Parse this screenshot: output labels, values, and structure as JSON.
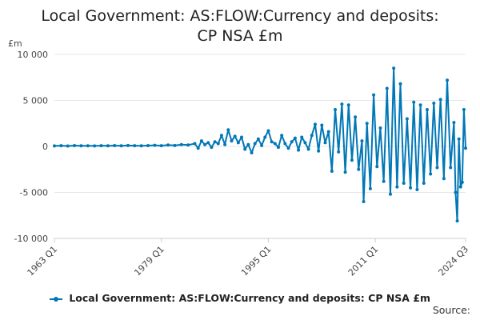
{
  "chart_data": {
    "type": "line",
    "title": "Local Government: AS:FLOW:Currency and deposits: CP NSA £m",
    "ylabel": "£m",
    "xlabel": "",
    "ylim": [
      -10000,
      10000
    ],
    "yticks": [
      10000,
      5000,
      0,
      -5000,
      -10000
    ],
    "ytick_labels": [
      "10 000",
      "5 000",
      "0",
      "-5 000",
      "-10 000"
    ],
    "xlim": [
      "1963 Q1",
      "2024 Q3"
    ],
    "xtick_labels": [
      "1963 Q1",
      "1979 Q1",
      "1995 Q1",
      "2011 Q1",
      "2024 Q3"
    ],
    "grid": "horizontal",
    "legend_position": "bottom",
    "color": "#0077b6",
    "series": [
      {
        "name": "Local Government: AS:FLOW:Currency and deposits: CP NSA £m",
        "points": [
          [
            "1963 Q1",
            50
          ],
          [
            "1964 Q1",
            80
          ],
          [
            "1965 Q1",
            40
          ],
          [
            "1966 Q1",
            90
          ],
          [
            "1967 Q1",
            60
          ],
          [
            "1968 Q1",
            70
          ],
          [
            "1969 Q1",
            50
          ],
          [
            "1970 Q1",
            80
          ],
          [
            "1971 Q1",
            60
          ],
          [
            "1972 Q1",
            90
          ],
          [
            "1973 Q1",
            70
          ],
          [
            "1974 Q1",
            100
          ],
          [
            "1975 Q1",
            80
          ],
          [
            "1976 Q1",
            60
          ],
          [
            "1977 Q1",
            90
          ],
          [
            "1978 Q1",
            120
          ],
          [
            "1979 Q1",
            80
          ],
          [
            "1980 Q1",
            150
          ],
          [
            "1981 Q1",
            100
          ],
          [
            "1982 Q1",
            200
          ],
          [
            "1983 Q1",
            150
          ],
          [
            "1984 Q1",
            300
          ],
          [
            "1984 Q3",
            -200
          ],
          [
            "1985 Q1",
            600
          ],
          [
            "1985 Q3",
            200
          ],
          [
            "1986 Q1",
            400
          ],
          [
            "1986 Q3",
            -100
          ],
          [
            "1987 Q1",
            500
          ],
          [
            "1987 Q3",
            300
          ],
          [
            "1988 Q1",
            1200
          ],
          [
            "1988 Q3",
            200
          ],
          [
            "1989 Q1",
            1800
          ],
          [
            "1989 Q3",
            600
          ],
          [
            "1990 Q1",
            1100
          ],
          [
            "1990 Q3",
            400
          ],
          [
            "1991 Q1",
            1000
          ],
          [
            "1991 Q3",
            -300
          ],
          [
            "1992 Q1",
            200
          ],
          [
            "1992 Q3",
            -700
          ],
          [
            "1993 Q1",
            300
          ],
          [
            "1993 Q3",
            800
          ],
          [
            "1994 Q1",
            100
          ],
          [
            "1994 Q3",
            1000
          ],
          [
            "1995 Q1",
            1700
          ],
          [
            "1995 Q3",
            500
          ],
          [
            "1996 Q1",
            300
          ],
          [
            "1996 Q3",
            -100
          ],
          [
            "1997 Q1",
            1200
          ],
          [
            "1997 Q3",
            300
          ],
          [
            "1998 Q1",
            -200
          ],
          [
            "1998 Q3",
            500
          ],
          [
            "1999 Q1",
            900
          ],
          [
            "1999 Q3",
            -400
          ],
          [
            "2000 Q1",
            1000
          ],
          [
            "2000 Q3",
            400
          ],
          [
            "2001 Q1",
            -300
          ],
          [
            "2001 Q3",
            1200
          ],
          [
            "2002 Q1",
            2400
          ],
          [
            "2002 Q3",
            -500
          ],
          [
            "2003 Q1",
            2300
          ],
          [
            "2003 Q3",
            400
          ],
          [
            "2004 Q1",
            1600
          ],
          [
            "2004 Q3",
            -2700
          ],
          [
            "2005 Q1",
            4000
          ],
          [
            "2005 Q3",
            -600
          ],
          [
            "2006 Q1",
            4600
          ],
          [
            "2006 Q3",
            -2800
          ],
          [
            "2007 Q1",
            4500
          ],
          [
            "2007 Q3",
            -1500
          ],
          [
            "2008 Q1",
            3200
          ],
          [
            "2008 Q3",
            -2500
          ],
          [
            "2009 Q1",
            600
          ],
          [
            "2009 Q2",
            -6000
          ],
          [
            "2009 Q4",
            2500
          ],
          [
            "2010 Q2",
            -4600
          ],
          [
            "2010 Q4",
            5600
          ],
          [
            "2011 Q2",
            -2200
          ],
          [
            "2011 Q4",
            2000
          ],
          [
            "2012 Q2",
            -3800
          ],
          [
            "2012 Q4",
            6300
          ],
          [
            "2013 Q2",
            -5200
          ],
          [
            "2013 Q4",
            8500
          ],
          [
            "2014 Q2",
            -4400
          ],
          [
            "2014 Q4",
            6800
          ],
          [
            "2015 Q2",
            -4000
          ],
          [
            "2015 Q4",
            3000
          ],
          [
            "2016 Q2",
            -4500
          ],
          [
            "2016 Q4",
            4800
          ],
          [
            "2017 Q2",
            -4700
          ],
          [
            "2017 Q4",
            4500
          ],
          [
            "2018 Q2",
            -4000
          ],
          [
            "2018 Q4",
            4000
          ],
          [
            "2019 Q2",
            -3000
          ],
          [
            "2019 Q4",
            4700
          ],
          [
            "2020 Q2",
            -2300
          ],
          [
            "2020 Q4",
            5100
          ],
          [
            "2021 Q2",
            -3500
          ],
          [
            "2021 Q4",
            7200
          ],
          [
            "2022 Q2",
            -2300
          ],
          [
            "2022 Q4",
            2600
          ],
          [
            "2023 Q1",
            -5000
          ],
          [
            "2023 Q2",
            -8100
          ],
          [
            "2023 Q3",
            800
          ],
          [
            "2023 Q4",
            -4400
          ],
          [
            "2024 Q1",
            -3900
          ],
          [
            "2024 Q2",
            4000
          ],
          [
            "2024 Q3",
            -200
          ]
        ]
      }
    ]
  },
  "source_label": "Source:"
}
